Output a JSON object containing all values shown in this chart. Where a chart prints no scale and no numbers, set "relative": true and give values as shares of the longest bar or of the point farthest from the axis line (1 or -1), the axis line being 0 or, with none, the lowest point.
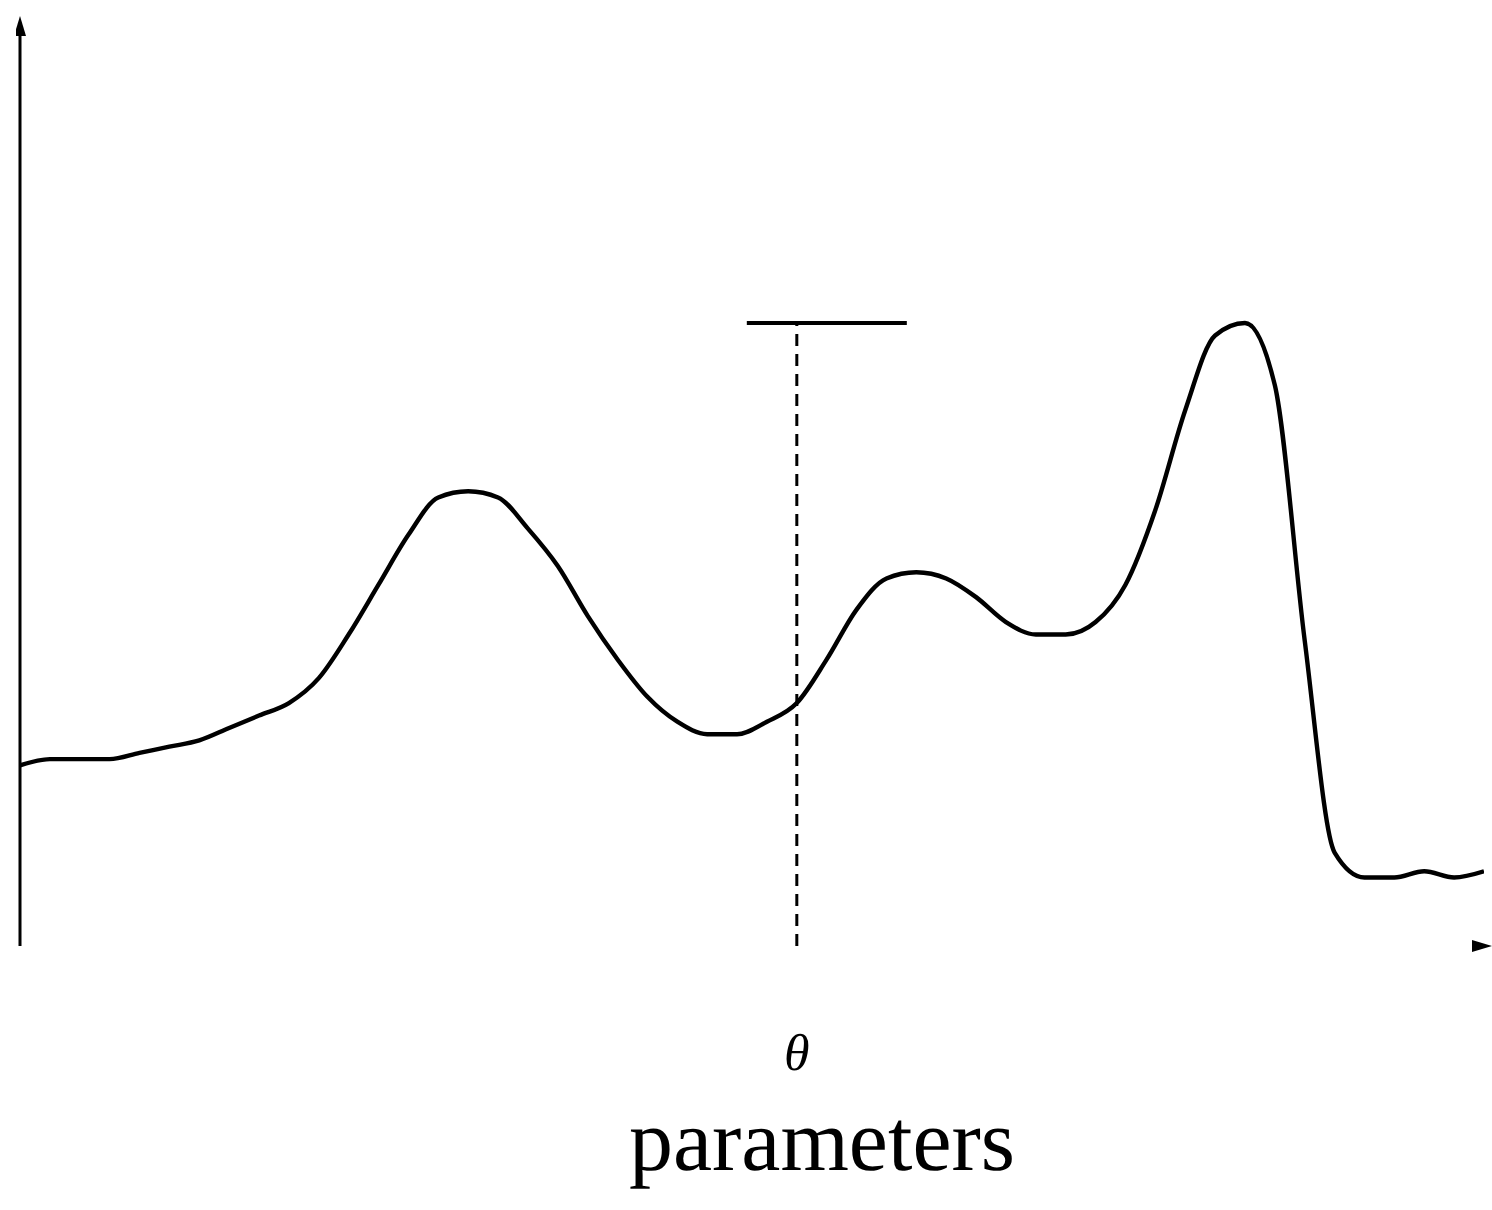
{
  "chart_data": {
    "type": "line",
    "relative": true,
    "xlabel": "parameters",
    "color": "#000000",
    "line_style": "solid",
    "categories": [
      null,
      null,
      null,
      null,
      null,
      null,
      null,
      null,
      null,
      null,
      null,
      null,
      null,
      null,
      null,
      null,
      null,
      null,
      null,
      null,
      null,
      null,
      null,
      null,
      null,
      null,
      null,
      null,
      null,
      null,
      null,
      null,
      null,
      null,
      null,
      null,
      null,
      null,
      null,
      null,
      null,
      null,
      null,
      null,
      null,
      null,
      null,
      null,
      null,
      null
    ],
    "values": [
      0.29,
      0.3,
      0.3,
      0.3,
      0.31,
      0.32,
      0.33,
      0.35,
      0.37,
      0.39,
      0.43,
      0.5,
      0.58,
      0.66,
      0.72,
      0.73,
      0.72,
      0.67,
      0.61,
      0.53,
      0.46,
      0.4,
      0.36,
      0.34,
      0.34,
      0.36,
      0.39,
      0.46,
      0.54,
      0.59,
      0.6,
      0.59,
      0.56,
      0.52,
      0.5,
      0.5,
      0.52,
      0.58,
      0.7,
      0.86,
      0.98,
      1,
      0.9,
      0.49,
      0.15,
      0.11,
      0.11,
      0.12,
      0.11,
      0.12
    ],
    "annotations": [
      "θ"
    ]
  }
}
